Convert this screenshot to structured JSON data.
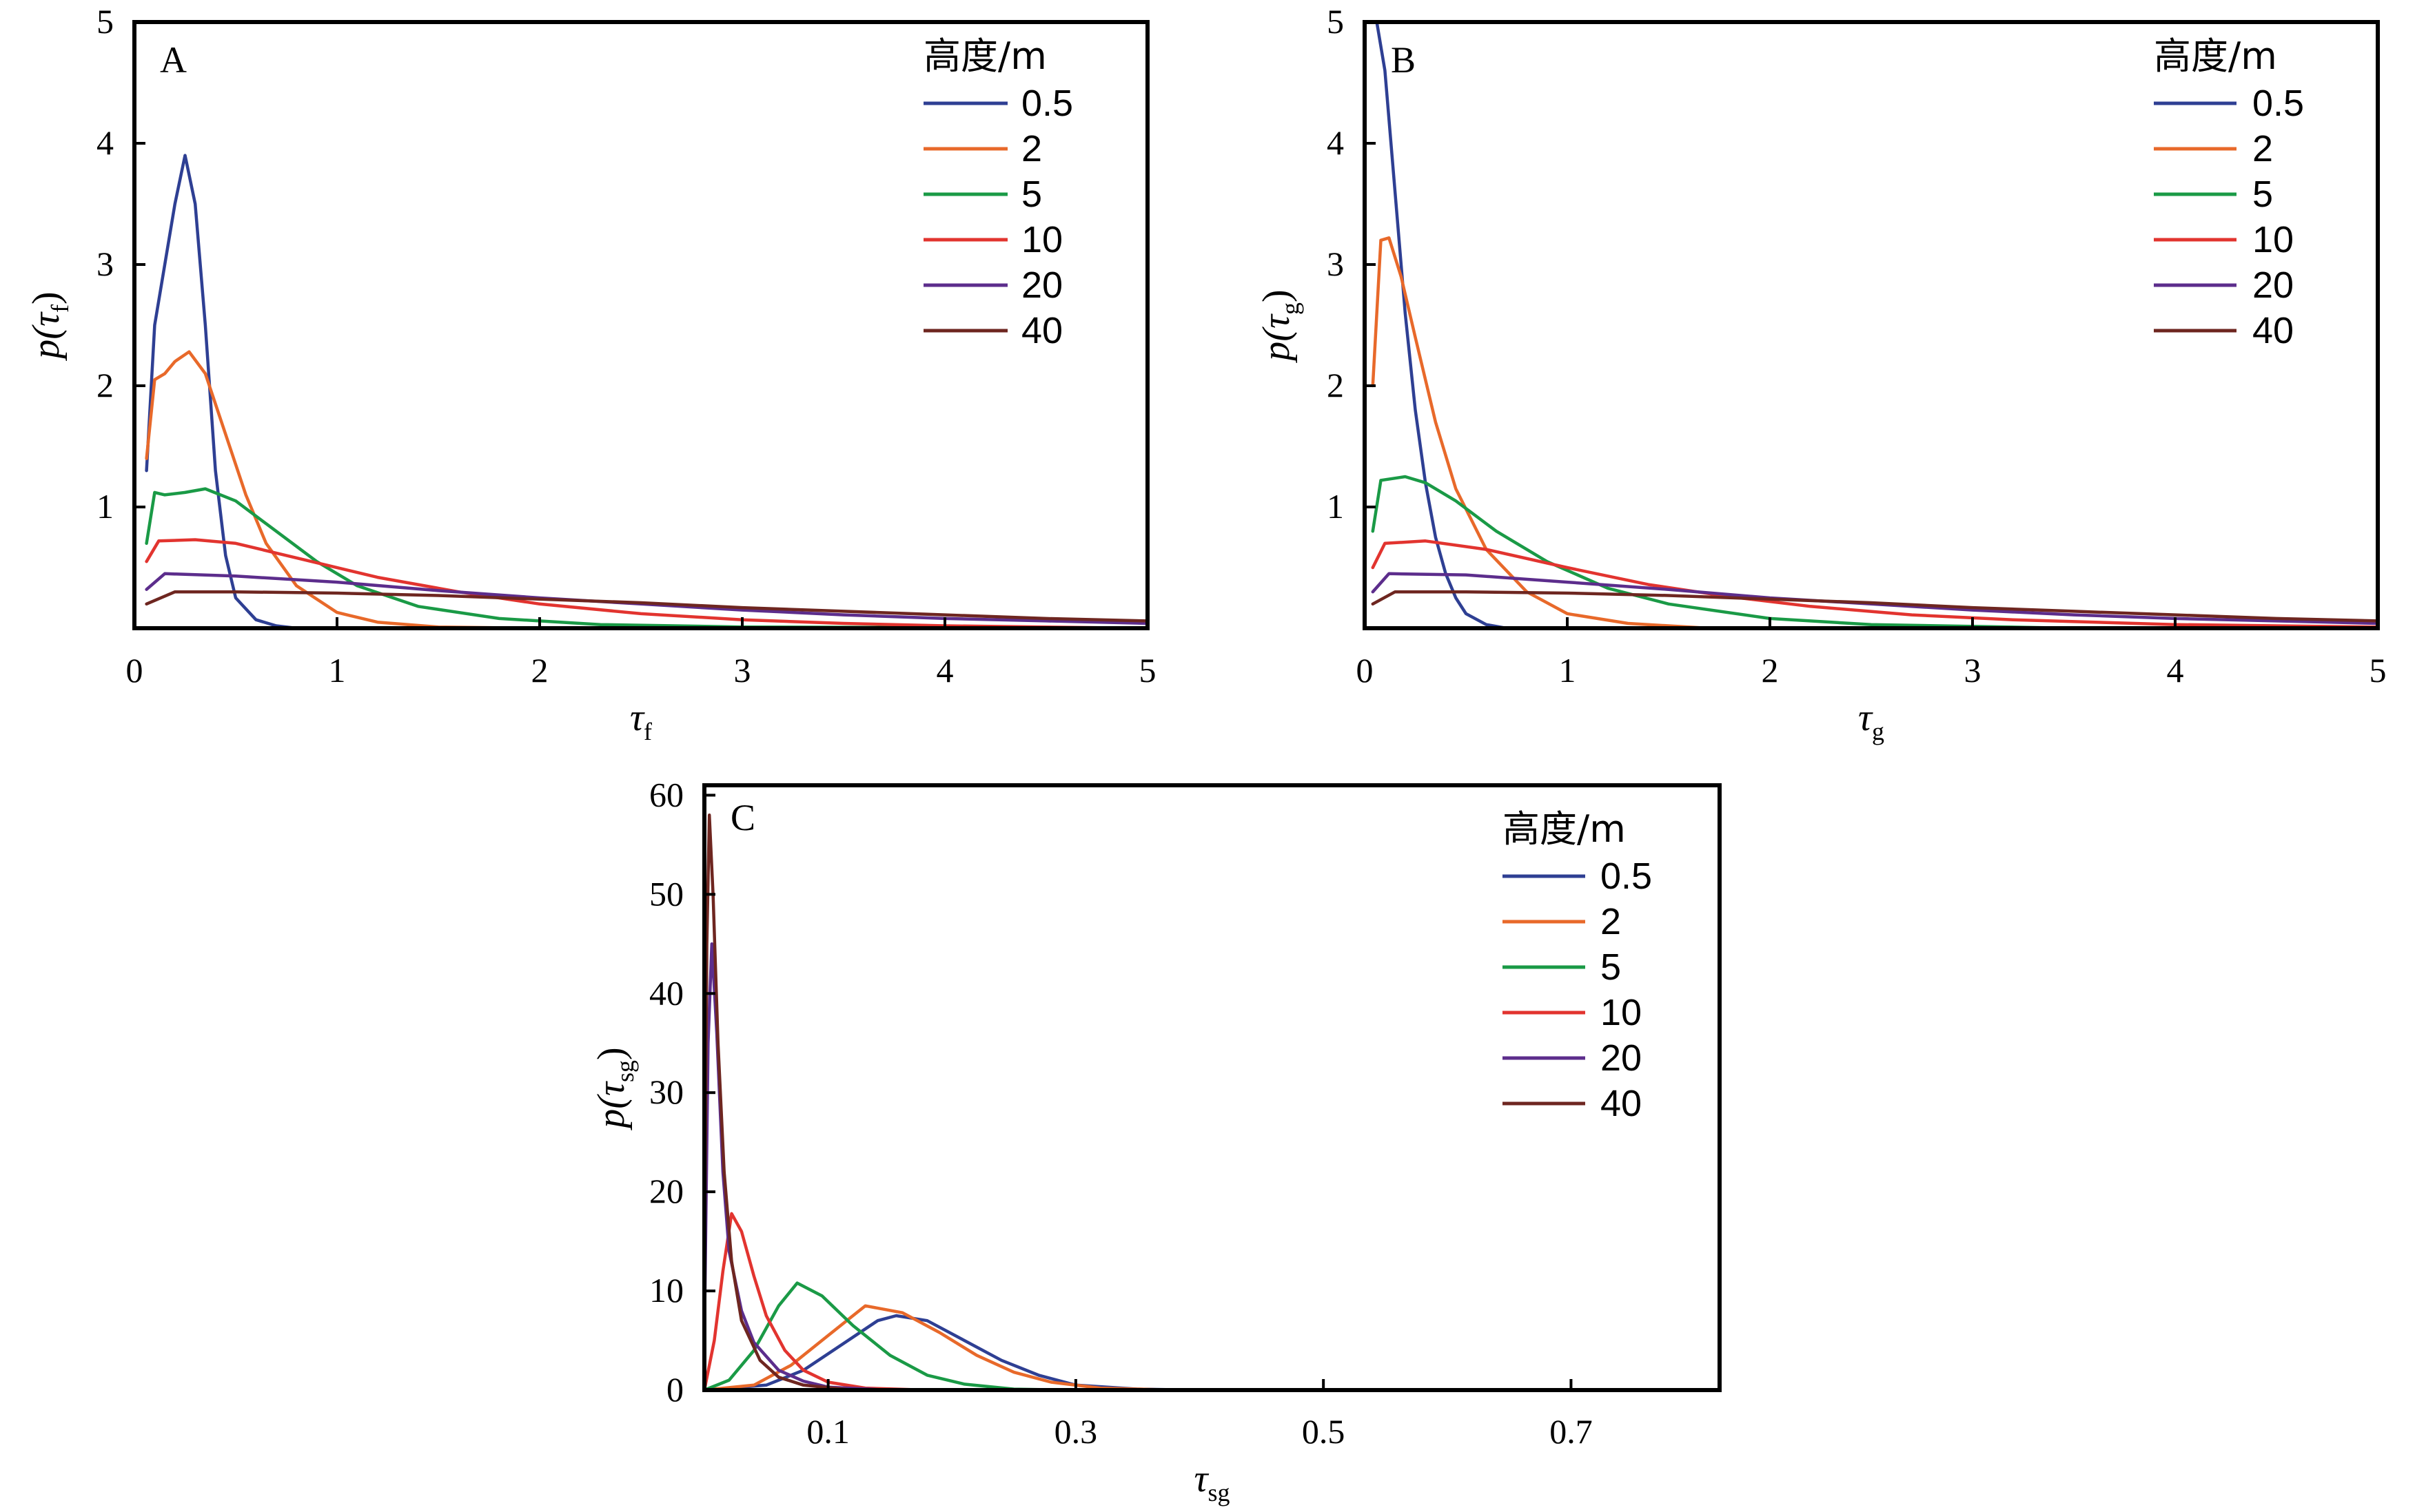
{
  "figure": {
    "legend_title": "高度/m",
    "series_colors": [
      "#2e3f93",
      "#e8692a",
      "#1a9a46",
      "#e2342f",
      "#5c2d8c",
      "#6e2620"
    ]
  },
  "chart_data": [
    {
      "panel": "A",
      "type": "line",
      "xlabel_main": "τ",
      "xlabel_sub": "f",
      "ylabel_main": "p(τ",
      "ylabel_sub": "f",
      "ylabel_close": ")",
      "xlim": [
        0,
        5
      ],
      "ylim": [
        0,
        5
      ],
      "xticks": [
        0,
        1,
        2,
        3,
        4,
        5
      ],
      "yticks": [
        1,
        2,
        3,
        4,
        5
      ],
      "legend_title": "高度/m",
      "legend_position": "top-right",
      "series": [
        {
          "name": "0.5",
          "color": "#2e3f93",
          "points": [
            [
              0.06,
              1.3
            ],
            [
              0.1,
              2.5
            ],
            [
              0.15,
              3.0
            ],
            [
              0.2,
              3.5
            ],
            [
              0.25,
              3.9
            ],
            [
              0.3,
              3.5
            ],
            [
              0.35,
              2.5
            ],
            [
              0.4,
              1.3
            ],
            [
              0.45,
              0.6
            ],
            [
              0.5,
              0.25
            ],
            [
              0.6,
              0.07
            ],
            [
              0.7,
              0.02
            ],
            [
              0.8,
              0.0
            ]
          ]
        },
        {
          "name": "2",
          "color": "#e8692a",
          "points": [
            [
              0.06,
              1.4
            ],
            [
              0.1,
              2.05
            ],
            [
              0.15,
              2.1
            ],
            [
              0.2,
              2.2
            ],
            [
              0.27,
              2.28
            ],
            [
              0.35,
              2.1
            ],
            [
              0.45,
              1.6
            ],
            [
              0.55,
              1.1
            ],
            [
              0.65,
              0.7
            ],
            [
              0.8,
              0.35
            ],
            [
              1.0,
              0.13
            ],
            [
              1.2,
              0.05
            ],
            [
              1.5,
              0.01
            ],
            [
              2.0,
              0.0
            ]
          ]
        },
        {
          "name": "5",
          "color": "#1a9a46",
          "points": [
            [
              0.06,
              0.7
            ],
            [
              0.1,
              1.12
            ],
            [
              0.15,
              1.1
            ],
            [
              0.25,
              1.12
            ],
            [
              0.35,
              1.15
            ],
            [
              0.5,
              1.05
            ],
            [
              0.7,
              0.8
            ],
            [
              0.9,
              0.55
            ],
            [
              1.1,
              0.35
            ],
            [
              1.4,
              0.18
            ],
            [
              1.8,
              0.08
            ],
            [
              2.3,
              0.03
            ],
            [
              3.0,
              0.01
            ],
            [
              5.0,
              0.0
            ]
          ]
        },
        {
          "name": "10",
          "color": "#e2342f",
          "points": [
            [
              0.06,
              0.55
            ],
            [
              0.12,
              0.72
            ],
            [
              0.3,
              0.73
            ],
            [
              0.5,
              0.7
            ],
            [
              0.8,
              0.58
            ],
            [
              1.2,
              0.42
            ],
            [
              1.6,
              0.3
            ],
            [
              2.0,
              0.2
            ],
            [
              2.5,
              0.12
            ],
            [
              3.0,
              0.07
            ],
            [
              3.5,
              0.04
            ],
            [
              4.0,
              0.02
            ],
            [
              5.0,
              0.0
            ]
          ]
        },
        {
          "name": "20",
          "color": "#5c2d8c",
          "points": [
            [
              0.06,
              0.32
            ],
            [
              0.15,
              0.45
            ],
            [
              0.5,
              0.43
            ],
            [
              1.0,
              0.38
            ],
            [
              1.5,
              0.31
            ],
            [
              2.0,
              0.25
            ],
            [
              2.5,
              0.2
            ],
            [
              3.0,
              0.15
            ],
            [
              3.5,
              0.11
            ],
            [
              4.0,
              0.08
            ],
            [
              4.5,
              0.06
            ],
            [
              5.0,
              0.04
            ]
          ]
        },
        {
          "name": "40",
          "color": "#6e2620",
          "points": [
            [
              0.06,
              0.2
            ],
            [
              0.2,
              0.3
            ],
            [
              0.5,
              0.3
            ],
            [
              1.0,
              0.29
            ],
            [
              1.5,
              0.27
            ],
            [
              2.0,
              0.24
            ],
            [
              2.5,
              0.21
            ],
            [
              3.0,
              0.17
            ],
            [
              3.5,
              0.14
            ],
            [
              4.0,
              0.11
            ],
            [
              4.5,
              0.08
            ],
            [
              5.0,
              0.06
            ]
          ]
        }
      ]
    },
    {
      "panel": "B",
      "type": "line",
      "xlabel_main": "τ",
      "xlabel_sub": "g",
      "ylabel_main": "p(τ",
      "ylabel_sub": "g",
      "ylabel_close": ")",
      "xlim": [
        0,
        5
      ],
      "ylim": [
        0,
        5
      ],
      "xticks": [
        0,
        1,
        2,
        3,
        4,
        5
      ],
      "yticks": [
        1,
        2,
        3,
        4,
        5
      ],
      "legend_title": "高度/m",
      "legend_position": "top-right",
      "series": [
        {
          "name": "0.5",
          "color": "#2e3f93",
          "points": [
            [
              0.06,
              5.0
            ],
            [
              0.1,
              4.6
            ],
            [
              0.15,
              3.6
            ],
            [
              0.2,
              2.6
            ],
            [
              0.25,
              1.8
            ],
            [
              0.3,
              1.2
            ],
            [
              0.35,
              0.75
            ],
            [
              0.4,
              0.45
            ],
            [
              0.45,
              0.25
            ],
            [
              0.5,
              0.12
            ],
            [
              0.6,
              0.03
            ],
            [
              0.7,
              0.0
            ]
          ]
        },
        {
          "name": "2",
          "color": "#e8692a",
          "points": [
            [
              0.04,
              2.0
            ],
            [
              0.08,
              3.2
            ],
            [
              0.12,
              3.22
            ],
            [
              0.18,
              2.9
            ],
            [
              0.25,
              2.4
            ],
            [
              0.35,
              1.7
            ],
            [
              0.45,
              1.15
            ],
            [
              0.6,
              0.65
            ],
            [
              0.8,
              0.3
            ],
            [
              1.0,
              0.12
            ],
            [
              1.3,
              0.04
            ],
            [
              1.7,
              0.0
            ]
          ]
        },
        {
          "name": "5",
          "color": "#1a9a46",
          "points": [
            [
              0.04,
              0.8
            ],
            [
              0.08,
              1.22
            ],
            [
              0.2,
              1.25
            ],
            [
              0.3,
              1.2
            ],
            [
              0.45,
              1.05
            ],
            [
              0.65,
              0.8
            ],
            [
              0.9,
              0.55
            ],
            [
              1.2,
              0.33
            ],
            [
              1.5,
              0.2
            ],
            [
              2.0,
              0.08
            ],
            [
              2.5,
              0.03
            ],
            [
              3.5,
              0.0
            ]
          ]
        },
        {
          "name": "10",
          "color": "#e2342f",
          "points": [
            [
              0.04,
              0.5
            ],
            [
              0.1,
              0.7
            ],
            [
              0.3,
              0.72
            ],
            [
              0.6,
              0.65
            ],
            [
              1.0,
              0.5
            ],
            [
              1.4,
              0.36
            ],
            [
              1.8,
              0.26
            ],
            [
              2.2,
              0.18
            ],
            [
              2.7,
              0.11
            ],
            [
              3.2,
              0.07
            ],
            [
              4.0,
              0.03
            ],
            [
              5.0,
              0.01
            ]
          ]
        },
        {
          "name": "20",
          "color": "#5c2d8c",
          "points": [
            [
              0.04,
              0.3
            ],
            [
              0.12,
              0.45
            ],
            [
              0.5,
              0.44
            ],
            [
              1.0,
              0.38
            ],
            [
              1.5,
              0.32
            ],
            [
              2.0,
              0.25
            ],
            [
              2.5,
              0.2
            ],
            [
              3.0,
              0.15
            ],
            [
              3.5,
              0.11
            ],
            [
              4.0,
              0.08
            ],
            [
              4.5,
              0.06
            ],
            [
              5.0,
              0.04
            ]
          ]
        },
        {
          "name": "40",
          "color": "#6e2620",
          "points": [
            [
              0.04,
              0.2
            ],
            [
              0.15,
              0.3
            ],
            [
              0.5,
              0.3
            ],
            [
              1.0,
              0.29
            ],
            [
              1.5,
              0.27
            ],
            [
              2.0,
              0.24
            ],
            [
              2.5,
              0.21
            ],
            [
              3.0,
              0.17
            ],
            [
              3.5,
              0.14
            ],
            [
              4.0,
              0.11
            ],
            [
              4.5,
              0.08
            ],
            [
              5.0,
              0.06
            ]
          ]
        }
      ]
    },
    {
      "panel": "C",
      "type": "line",
      "xlabel_main": "τ",
      "xlabel_sub": "sg",
      "ylabel_main": "p(τ",
      "ylabel_sub": "sg",
      "ylabel_close": ")",
      "xlim": [
        0,
        0.82
      ],
      "ylim": [
        0,
        61
      ],
      "xticks": [
        0.1,
        0.3,
        0.5,
        0.7
      ],
      "yticks": [
        0,
        10,
        20,
        30,
        40,
        50,
        60
      ],
      "legend_title": "高度/m",
      "legend_position": "top-right",
      "series": [
        {
          "name": "0.5",
          "color": "#2e3f93",
          "points": [
            [
              0.0,
              0.0
            ],
            [
              0.05,
              0.5
            ],
            [
              0.08,
              2.0
            ],
            [
              0.11,
              4.5
            ],
            [
              0.14,
              7.0
            ],
            [
              0.155,
              7.5
            ],
            [
              0.18,
              7.0
            ],
            [
              0.21,
              5.0
            ],
            [
              0.24,
              3.0
            ],
            [
              0.27,
              1.5
            ],
            [
              0.3,
              0.5
            ],
            [
              0.35,
              0.1
            ],
            [
              0.4,
              0.0
            ],
            [
              0.79,
              0.0
            ]
          ]
        },
        {
          "name": "2",
          "color": "#e8692a",
          "points": [
            [
              0.0,
              0.0
            ],
            [
              0.04,
              0.5
            ],
            [
              0.07,
              2.5
            ],
            [
              0.1,
              5.5
            ],
            [
              0.13,
              8.5
            ],
            [
              0.16,
              7.8
            ],
            [
              0.19,
              5.8
            ],
            [
              0.22,
              3.5
            ],
            [
              0.25,
              1.8
            ],
            [
              0.28,
              0.8
            ],
            [
              0.32,
              0.2
            ],
            [
              0.38,
              0.0
            ]
          ]
        },
        {
          "name": "5",
          "color": "#1a9a46",
          "points": [
            [
              0.0,
              0.0
            ],
            [
              0.02,
              1.0
            ],
            [
              0.04,
              4.0
            ],
            [
              0.06,
              8.5
            ],
            [
              0.075,
              10.8
            ],
            [
              0.095,
              9.5
            ],
            [
              0.12,
              6.5
            ],
            [
              0.15,
              3.5
            ],
            [
              0.18,
              1.5
            ],
            [
              0.21,
              0.6
            ],
            [
              0.25,
              0.1
            ],
            [
              0.3,
              0.0
            ]
          ]
        },
        {
          "name": "10",
          "color": "#e2342f",
          "points": [
            [
              0.0,
              0.0
            ],
            [
              0.008,
              5.0
            ],
            [
              0.015,
              12.0
            ],
            [
              0.022,
              17.8
            ],
            [
              0.03,
              16.0
            ],
            [
              0.04,
              11.5
            ],
            [
              0.05,
              7.5
            ],
            [
              0.065,
              4.0
            ],
            [
              0.08,
              2.0
            ],
            [
              0.1,
              0.8
            ],
            [
              0.13,
              0.2
            ],
            [
              0.18,
              0.0
            ]
          ]
        },
        {
          "name": "20",
          "color": "#5c2d8c",
          "points": [
            [
              0.0,
              5.0
            ],
            [
              0.003,
              35.0
            ],
            [
              0.006,
              45.0
            ],
            [
              0.01,
              36.0
            ],
            [
              0.015,
              22.0
            ],
            [
              0.02,
              14.0
            ],
            [
              0.03,
              8.0
            ],
            [
              0.04,
              4.8
            ],
            [
              0.06,
              2.0
            ],
            [
              0.08,
              0.9
            ],
            [
              0.1,
              0.3
            ],
            [
              0.15,
              0.0
            ]
          ]
        },
        {
          "name": "40",
          "color": "#6e2620",
          "points": [
            [
              0.0,
              10.0
            ],
            [
              0.002,
              45.0
            ],
            [
              0.004,
              58.0
            ],
            [
              0.007,
              50.0
            ],
            [
              0.011,
              35.0
            ],
            [
              0.016,
              22.0
            ],
            [
              0.022,
              13.0
            ],
            [
              0.03,
              7.0
            ],
            [
              0.045,
              3.0
            ],
            [
              0.06,
              1.3
            ],
            [
              0.08,
              0.5
            ],
            [
              0.12,
              0.0
            ]
          ]
        }
      ]
    }
  ]
}
